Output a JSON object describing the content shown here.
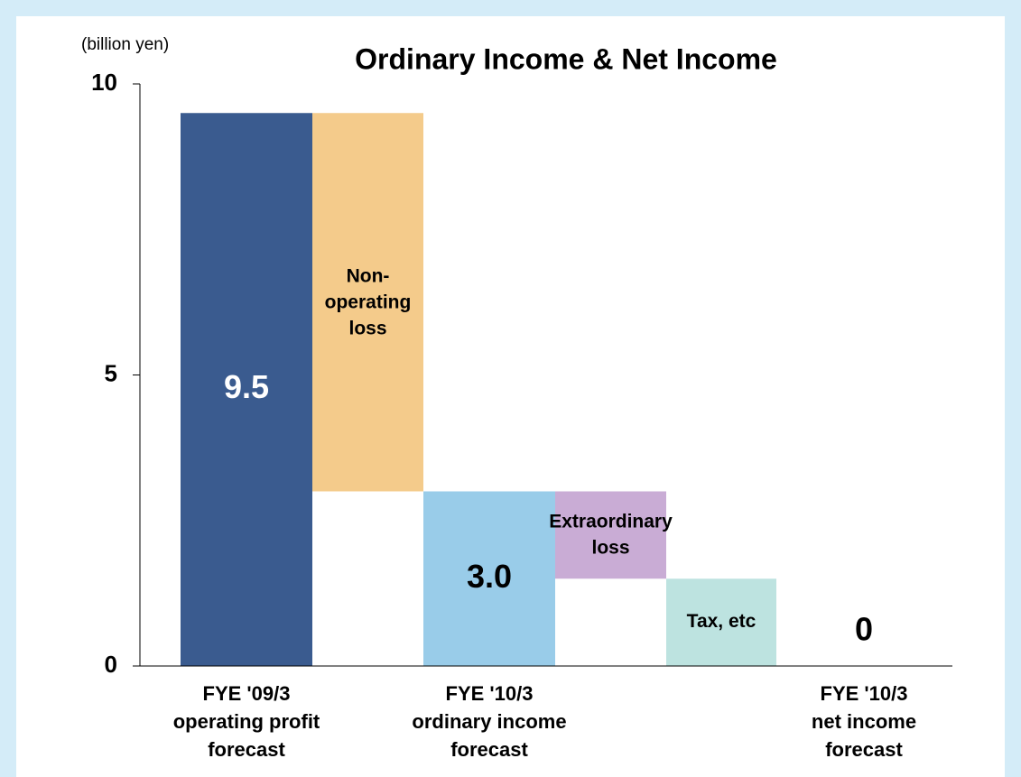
{
  "chart_data": {
    "type": "waterfall",
    "title": "Ordinary Income & Net Income",
    "unit_label": "(billion yen)",
    "categories": [
      [
        "FYE '09/3",
        "operating profit",
        "forecast"
      ],
      [
        "Non-",
        "operating",
        "loss"
      ],
      [
        "FYE '10/3",
        "ordinary income",
        "forecast"
      ],
      [
        "Extraordinary",
        "loss"
      ],
      [
        "Tax, etc"
      ],
      [
        "FYE '10/3",
        "net income",
        "forecast"
      ]
    ],
    "measure": [
      "absolute",
      "relative",
      "absolute",
      "relative",
      "relative",
      "absolute"
    ],
    "values": [
      9.5,
      -6.5,
      3.0,
      -1.5,
      -1.5,
      0
    ],
    "value_labels": [
      "9.5",
      null,
      "3.0",
      null,
      null,
      "0"
    ],
    "colors": [
      "#3a5b8f",
      "#f4cb8b",
      "#99cce9",
      "#c9acd5",
      "#bde3e0",
      "#3a5b8f"
    ],
    "ylim": [
      0,
      10
    ],
    "yticks": [
      0,
      5,
      10
    ],
    "grid": false
  }
}
